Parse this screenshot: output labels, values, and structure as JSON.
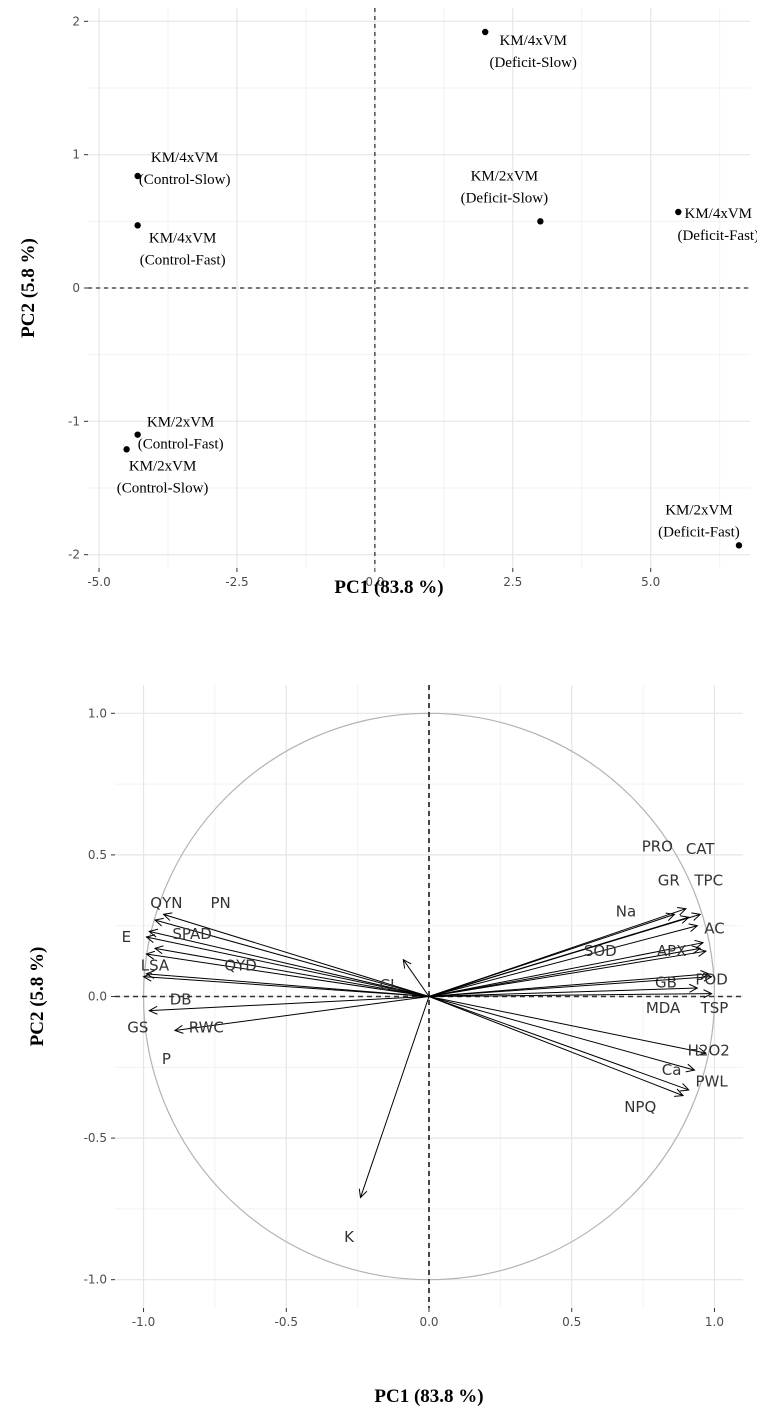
{
  "chart_data": [
    {
      "type": "scatter",
      "xlabel": "PC1 (83.8 %)",
      "ylabel": "PC2 (5.8 %)",
      "xlim": [
        -5.2,
        6.8
      ],
      "ylim": [
        -2.1,
        2.1
      ],
      "xticks": [
        -5.0,
        -2.5,
        0.0,
        2.5,
        5.0
      ],
      "xtick_labels": [
        "-5.0",
        "-2.5",
        "0.0",
        "2.5",
        "5.0"
      ],
      "yticks": [
        -2,
        -1,
        0,
        1,
        2
      ],
      "ytick_labels": [
        "-2",
        "-1",
        "0",
        "1",
        "2"
      ],
      "grid": true,
      "reference_lines": {
        "x": 0,
        "y": 0,
        "style": "dashed"
      },
      "points": [
        {
          "x": 2.0,
          "y": 1.92,
          "line1": "KM/4xVM",
          "line2": "(Deficit-Slow)"
        },
        {
          "x": -4.3,
          "y": 0.84,
          "line1": "KM/4xVM",
          "line2": "(Control-Slow)"
        },
        {
          "x": -4.3,
          "y": 0.47,
          "line1": "KM/4xVM",
          "line2": "(Control-Fast)"
        },
        {
          "x": 3.0,
          "y": 0.5,
          "line1": "KM/2xVM",
          "line2": "(Deficit-Slow)"
        },
        {
          "x": 5.5,
          "y": 0.57,
          "line1": "KM/4xVM",
          "line2": "(Deficit-Fast)"
        },
        {
          "x": -4.3,
          "y": -1.1,
          "line1": "KM/2xVM",
          "line2": "(Control-Fast)"
        },
        {
          "x": -4.5,
          "y": -1.21,
          "line1": "KM/2xVM",
          "line2": "(Control-Slow)"
        },
        {
          "x": 6.6,
          "y": -1.93,
          "line1": "KM/2xVM",
          "line2": "(Deficit-Fast)"
        }
      ]
    },
    {
      "type": "biplot",
      "xlabel": "PC1 (83.8 %)",
      "ylabel": "PC2 (5.8 %)",
      "xlim": [
        -1.1,
        1.1
      ],
      "ylim": [
        -1.1,
        1.1
      ],
      "xticks": [
        -1.0,
        -0.5,
        0.0,
        0.5,
        1.0
      ],
      "xtick_labels": [
        "-1.0",
        "-0.5",
        "0.0",
        "0.5",
        "1.0"
      ],
      "yticks": [
        -1.0,
        -0.5,
        0.0,
        0.5,
        1.0
      ],
      "ytick_labels": [
        "-1.0",
        "-0.5",
        "0.0",
        "0.5",
        "1.0"
      ],
      "grid": true,
      "unit_circle": true,
      "reference_lines": {
        "x": 0,
        "y": 0,
        "style": "dashed"
      },
      "vectors": [
        {
          "name": "PRO",
          "x": 0.9,
          "y": 0.31,
          "lx": 0.8,
          "ly": 0.53
        },
        {
          "name": "CAT",
          "x": 0.95,
          "y": 0.29,
          "lx": 0.95,
          "ly": 0.52
        },
        {
          "name": "GR",
          "x": 0.91,
          "y": 0.28,
          "lx": 0.84,
          "ly": 0.41
        },
        {
          "name": "TPC",
          "x": 0.94,
          "y": 0.25,
          "lx": 0.98,
          "ly": 0.41
        },
        {
          "name": "Na",
          "x": 0.86,
          "y": 0.29,
          "lx": 0.69,
          "ly": 0.3
        },
        {
          "name": "AC",
          "x": 0.96,
          "y": 0.19,
          "lx": 1.0,
          "ly": 0.24
        },
        {
          "name": "SOD",
          "x": 0.95,
          "y": 0.17,
          "lx": 0.6,
          "ly": 0.16
        },
        {
          "name": "APX",
          "x": 0.97,
          "y": 0.16,
          "lx": 0.85,
          "ly": 0.16
        },
        {
          "name": "GB",
          "x": 0.98,
          "y": 0.08,
          "lx": 0.83,
          "ly": 0.05
        },
        {
          "name": "POD",
          "x": 0.99,
          "y": 0.07,
          "lx": 0.99,
          "ly": 0.06
        },
        {
          "name": "MDA",
          "x": 0.94,
          "y": 0.03,
          "lx": 0.82,
          "ly": -0.04
        },
        {
          "name": "TSP",
          "x": 0.99,
          "y": 0.01,
          "lx": 1.0,
          "ly": -0.04
        },
        {
          "name": "H2O2",
          "x": 0.97,
          "y": -0.2,
          "lx": 0.98,
          "ly": -0.19
        },
        {
          "name": "Ca",
          "x": 0.93,
          "y": -0.26,
          "lx": 0.85,
          "ly": -0.26
        },
        {
          "name": "PWL",
          "x": 0.91,
          "y": -0.33,
          "lx": 0.99,
          "ly": -0.3
        },
        {
          "name": "NPQ",
          "x": 0.89,
          "y": -0.35,
          "lx": 0.74,
          "ly": -0.39
        },
        {
          "name": "QYN",
          "x": -0.93,
          "y": 0.29,
          "lx": -0.92,
          "ly": 0.33
        },
        {
          "name": "PN",
          "x": -0.96,
          "y": 0.27,
          "lx": -0.73,
          "ly": 0.33
        },
        {
          "name": "E",
          "x": -0.99,
          "y": 0.21,
          "lx": -1.06,
          "ly": 0.21
        },
        {
          "name": "SPAD",
          "x": -0.98,
          "y": 0.23,
          "lx": -0.83,
          "ly": 0.22
        },
        {
          "name": "LSA",
          "x": -0.99,
          "y": 0.15,
          "lx": -0.96,
          "ly": 0.11
        },
        {
          "name": "QYD",
          "x": -0.96,
          "y": 0.17,
          "lx": -0.66,
          "ly": 0.11
        },
        {
          "name": "CL",
          "x": -0.09,
          "y": 0.13,
          "lx": -0.14,
          "ly": 0.04
        },
        {
          "name": "DB",
          "x": -0.99,
          "y": 0.08,
          "lx": -0.87,
          "ly": -0.01
        },
        {
          "name": "GS",
          "x": -1.0,
          "y": 0.07,
          "lx": -1.02,
          "ly": -0.11
        },
        {
          "name": "RWC",
          "x": -0.89,
          "y": -0.12,
          "lx": -0.78,
          "ly": -0.11
        },
        {
          "name": "P",
          "x": -0.98,
          "y": -0.05,
          "lx": -0.92,
          "ly": -0.22
        },
        {
          "name": "K",
          "x": -0.24,
          "y": -0.71,
          "lx": -0.28,
          "ly": -0.85
        }
      ]
    }
  ]
}
